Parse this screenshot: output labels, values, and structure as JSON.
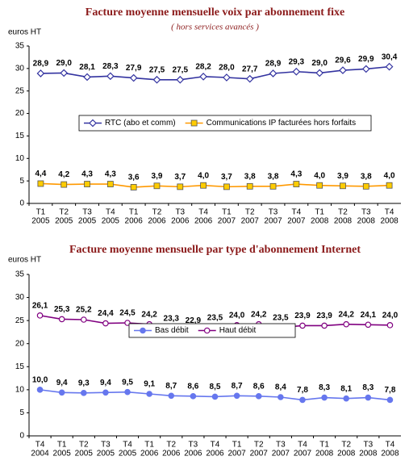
{
  "chart_data": [
    {
      "type": "line",
      "title": "Facture moyenne mensuelle voix par abonnement fixe",
      "subtitle": "( hors services avancés )",
      "y_label": "euros HT",
      "categories": [
        [
          "T1",
          "2005"
        ],
        [
          "T2",
          "2005"
        ],
        [
          "T3",
          "2005"
        ],
        [
          "T4",
          "2005"
        ],
        [
          "T1",
          "2006"
        ],
        [
          "T2",
          "2006"
        ],
        [
          "T3",
          "2006"
        ],
        [
          "T4",
          "2006"
        ],
        [
          "T1",
          "2007"
        ],
        [
          "T2",
          "2007"
        ],
        [
          "T3",
          "2007"
        ],
        [
          "T4",
          "2007"
        ],
        [
          "T1",
          "2008"
        ],
        [
          "T2",
          "2008"
        ],
        [
          "T3",
          "2008"
        ],
        [
          "T4",
          "2008"
        ]
      ],
      "ylim": [
        0,
        35
      ],
      "yticks": [
        0,
        5,
        10,
        15,
        20,
        25,
        30,
        35
      ],
      "series": [
        {
          "name": "RTC (abo et comm)",
          "color": "#3333a0",
          "marker": "diamond",
          "marker_fill": "#ffffff",
          "label_color": "#333399",
          "values": [
            28.9,
            29.0,
            28.1,
            28.3,
            27.9,
            27.5,
            27.5,
            28.2,
            28.0,
            27.7,
            28.9,
            29.3,
            29.0,
            29.6,
            29.9,
            30.4
          ],
          "value_labels": [
            "28,9",
            "29,0",
            "28,1",
            "28,3",
            "27,9",
            "27,5",
            "27,5",
            "28,2",
            "28,0",
            "27,7",
            "28,9",
            "29,3",
            "29,0",
            "29,6",
            "29,9",
            "30,4"
          ]
        },
        {
          "name": "Communications IP facturées hors forfaits",
          "color": "#ff9900",
          "marker": "square",
          "marker_fill": "#ffcc00",
          "label_color": "#993300",
          "values": [
            4.4,
            4.2,
            4.3,
            4.3,
            3.6,
            3.9,
            3.7,
            4.0,
            3.7,
            3.8,
            3.8,
            4.3,
            4.0,
            3.9,
            3.8,
            4.0
          ],
          "value_labels": [
            "4,4",
            "4,2",
            "4,3",
            "4,3",
            "3,6",
            "3,9",
            "3,7",
            "4,0",
            "3,7",
            "3,8",
            "3,8",
            "4,3",
            "4,0",
            "3,9",
            "3,8",
            "4,0"
          ]
        }
      ]
    },
    {
      "type": "line",
      "title": "Facture moyenne mensuelle par type d'abonnement Internet",
      "y_label": "euros HT",
      "categories": [
        [
          "T4",
          "2004"
        ],
        [
          "T1",
          "2005"
        ],
        [
          "T2",
          "2005"
        ],
        [
          "T3",
          "2005"
        ],
        [
          "T4",
          "2005"
        ],
        [
          "T1",
          "2006"
        ],
        [
          "T2",
          "2006"
        ],
        [
          "T3",
          "2006"
        ],
        [
          "T4",
          "2006"
        ],
        [
          "T1",
          "2007"
        ],
        [
          "T2",
          "2007"
        ],
        [
          "T3",
          "2007"
        ],
        [
          "T4",
          "2007"
        ],
        [
          "T1",
          "2008"
        ],
        [
          "T2",
          "2008"
        ],
        [
          "T3",
          "2008"
        ],
        [
          "T4",
          "2008"
        ]
      ],
      "ylim": [
        0,
        35
      ],
      "yticks": [
        0,
        5,
        10,
        15,
        20,
        25,
        30,
        35
      ],
      "series": [
        {
          "name": "Bas débit",
          "color": "#6677ee",
          "marker": "circle",
          "marker_fill": "#6677ee",
          "label_color": "#6677ee",
          "values": [
            10.0,
            9.4,
            9.3,
            9.4,
            9.5,
            9.1,
            8.7,
            8.6,
            8.5,
            8.7,
            8.6,
            8.4,
            7.8,
            8.3,
            8.1,
            8.3,
            7.8
          ],
          "value_labels": [
            "10,0",
            "9,4",
            "9,3",
            "9,4",
            "9,5",
            "9,1",
            "8,7",
            "8,6",
            "8,5",
            "8,7",
            "8,6",
            "8,4",
            "7,8",
            "8,3",
            "8,1",
            "8,3",
            "7,8"
          ]
        },
        {
          "name": "Haut débit",
          "color": "#800080",
          "marker": "circle",
          "marker_fill": "#ffffff",
          "label_color": "#800080",
          "values": [
            26.1,
            25.3,
            25.2,
            24.4,
            24.5,
            24.2,
            23.3,
            22.9,
            23.5,
            24.0,
            24.2,
            23.5,
            23.9,
            23.9,
            24.2,
            24.1,
            24.0
          ],
          "value_labels": [
            "26,1",
            "25,3",
            "25,2",
            "24,4",
            "24,5",
            "24,2",
            "23,3",
            "22,9",
            "23,5",
            "24,0",
            "24,2",
            "23,5",
            "23,9",
            "23,9",
            "24,2",
            "24,1",
            "24,0"
          ]
        }
      ]
    }
  ]
}
